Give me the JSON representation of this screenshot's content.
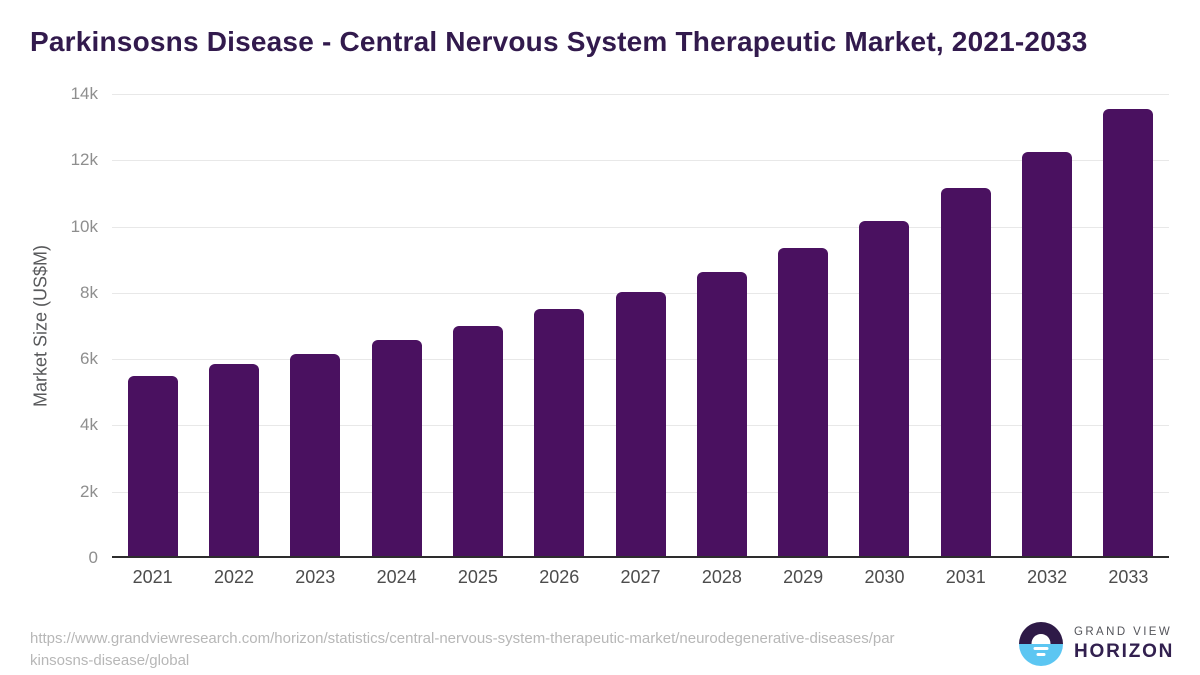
{
  "title": "Parkinsosns Disease - Central Nervous System Therapeutic Market, 2021-2033",
  "chart_data": {
    "type": "bar",
    "title": "Parkinsosns Disease - Central Nervous System Therapeutic Market, 2021-2033",
    "categories": [
      "2021",
      "2022",
      "2023",
      "2024",
      "2025",
      "2026",
      "2027",
      "2028",
      "2029",
      "2030",
      "2031",
      "2032",
      "2033"
    ],
    "values": [
      5420,
      5780,
      6100,
      6510,
      6930,
      7440,
      7970,
      8570,
      9290,
      10120,
      11100,
      12180,
      13500
    ],
    "xlabel": "",
    "ylabel": "Market Size (US$M)",
    "ylim": [
      0,
      14000
    ],
    "ytick_step": 2000,
    "ytick_labels": [
      "0",
      "2k",
      "4k",
      "6k",
      "8k",
      "10k",
      "12k",
      "14k"
    ],
    "grid": true,
    "legend": "none",
    "bar_color": "#4a1160"
  },
  "colors": {
    "title_text": "#321a4d",
    "bar": "#4a1160",
    "gridline": "#e8e8e8",
    "axis_line": "#2d2d2d",
    "y_tick_text": "#8e8e8e",
    "x_tick_text": "#4c4c4c",
    "url_text": "#b7b7b7",
    "logo_dark": "#2e1a47",
    "logo_blue": "#5cc6f2"
  },
  "footer": {
    "source_url_lines": [
      "https://www.grandviewresearch.com/horizon/statistics/central-nervous-system-therapeutic-market/neurodegenerative-diseases/par",
      "kinsosns-disease/global"
    ],
    "logo": {
      "brand_top": "GRAND VIEW",
      "brand_bottom": "HORIZON"
    }
  }
}
